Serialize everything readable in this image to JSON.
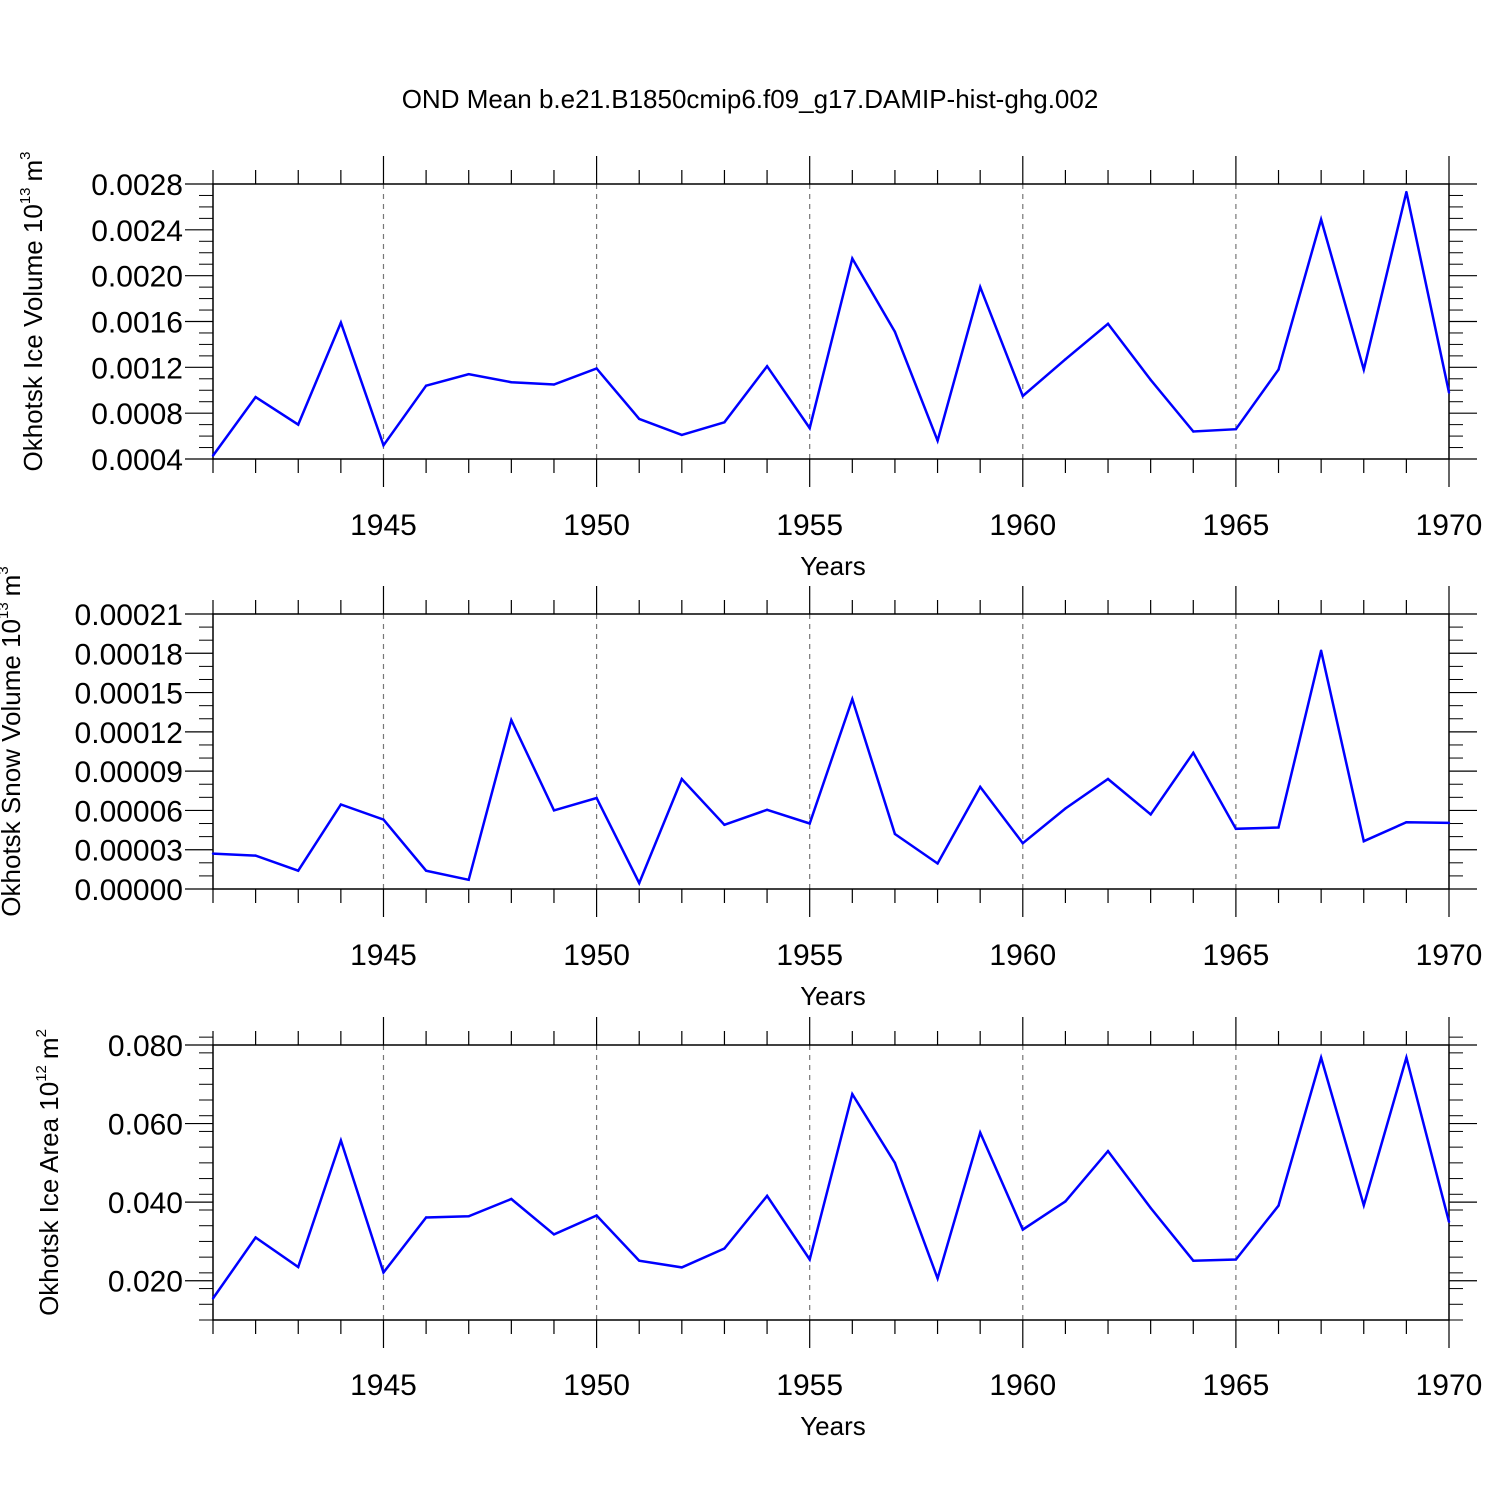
{
  "figure": {
    "title": "OND Mean b.e21.B1850cmip6.f09_g17.DAMIP-hist-ghg.002",
    "line_color": "#0000ff"
  },
  "chart_data": [
    {
      "type": "line",
      "name": "ice-volume",
      "ylabel_text": "Okhotsk Ice Volume 10",
      "ylabel_exp": "13",
      "ylabel_unit": "m",
      "ylabel_unit_exp": "3",
      "xlabel": "Years",
      "xlim": [
        1941,
        1970
      ],
      "ylim": [
        0.0004,
        0.0028
      ],
      "x_ticks": [
        1945,
        1950,
        1955,
        1960,
        1965,
        1970
      ],
      "y_ticks": [
        0.0004,
        0.0008,
        0.0012,
        0.0016,
        0.002,
        0.0024,
        0.0028
      ],
      "y_tick_labels": [
        "0.0004",
        "0.0008",
        "0.0012",
        "0.0016",
        "0.0020",
        "0.0024",
        "0.0028"
      ],
      "y_minor_step": 0.0001,
      "grid": "x-dashed",
      "series": [
        {
          "name": "Okhotsk Ice Volume",
          "x": [
            1941,
            1942,
            1943,
            1944,
            1945,
            1946,
            1947,
            1948,
            1949,
            1950,
            1951,
            1952,
            1953,
            1954,
            1955,
            1956,
            1957,
            1958,
            1959,
            1960,
            1961,
            1962,
            1963,
            1964,
            1965,
            1966,
            1967,
            1968,
            1969,
            1970
          ],
          "values": [
            0.00043,
            0.00094,
            0.0007,
            0.00159,
            0.00052,
            0.00104,
            0.00114,
            0.00107,
            0.00105,
            0.00119,
            0.00075,
            0.00061,
            0.00072,
            0.00121,
            0.00067,
            0.00215,
            0.00151,
            0.00056,
            0.0019,
            0.00095,
            0.00127,
            0.00158,
            0.00109,
            0.00064,
            0.00066,
            0.00118,
            0.00249,
            0.00118,
            0.00273,
            0.00098
          ]
        }
      ]
    },
    {
      "type": "line",
      "name": "snow-volume",
      "ylabel_text": "Okhotsk Snow Volume 10",
      "ylabel_exp": "13",
      "ylabel_unit": "m",
      "ylabel_unit_exp": "3",
      "xlabel": "Years",
      "xlim": [
        1941,
        1970
      ],
      "ylim": [
        0.0,
        0.00021
      ],
      "x_ticks": [
        1945,
        1950,
        1955,
        1960,
        1965,
        1970
      ],
      "y_ticks": [
        0.0,
        3e-05,
        6e-05,
        9e-05,
        0.00012,
        0.00015,
        0.00018,
        0.00021
      ],
      "y_tick_labels": [
        "0.00000",
        "0.00003",
        "0.00006",
        "0.00009",
        "0.00012",
        "0.00015",
        "0.00018",
        "0.00021"
      ],
      "y_minor_step": 1e-05,
      "grid": "x-dashed",
      "series": [
        {
          "name": "Okhotsk Snow Volume",
          "x": [
            1941,
            1942,
            1943,
            1944,
            1945,
            1946,
            1947,
            1948,
            1949,
            1950,
            1951,
            1952,
            1953,
            1954,
            1955,
            1956,
            1957,
            1958,
            1959,
            1960,
            1961,
            1962,
            1963,
            1964,
            1965,
            1966,
            1967,
            1968,
            1969,
            1970
          ],
          "values": [
            2.7e-05,
            2.55e-05,
            1.4e-05,
            6.45e-05,
            5.3e-05,
            1.4e-05,
            7e-06,
            0.000129,
            6e-05,
            6.95e-05,
            4.5e-06,
            8.4e-05,
            4.9e-05,
            6.05e-05,
            5e-05,
            0.000145,
            4.2e-05,
            1.95e-05,
            7.8e-05,
            3.5e-05,
            6.15e-05,
            8.4e-05,
            5.7e-05,
            0.000104,
            4.6e-05,
            4.7e-05,
            0.000182,
            3.65e-05,
            5.1e-05,
            5.05e-05
          ]
        }
      ]
    },
    {
      "type": "line",
      "name": "ice-area",
      "ylabel_text": "Okhotsk Ice Area 10",
      "ylabel_exp": "12",
      "ylabel_unit": "m",
      "ylabel_unit_exp": "2",
      "xlabel": "Years",
      "xlim": [
        1941,
        1970
      ],
      "ylim": [
        0.01,
        0.08
      ],
      "x_ticks": [
        1945,
        1950,
        1955,
        1960,
        1965,
        1970
      ],
      "y_ticks": [
        0.02,
        0.04,
        0.06,
        0.08
      ],
      "y_tick_labels": [
        "0.020",
        "0.040",
        "0.060",
        "0.080"
      ],
      "y_minor_step": 0.004,
      "grid": "x-dashed",
      "series": [
        {
          "name": "Okhotsk Ice Area",
          "x": [
            1941,
            1942,
            1943,
            1944,
            1945,
            1946,
            1947,
            1948,
            1949,
            1950,
            1951,
            1952,
            1953,
            1954,
            1955,
            1956,
            1957,
            1958,
            1959,
            1960,
            1961,
            1962,
            1963,
            1964,
            1965,
            1966,
            1967,
            1968,
            1969,
            1970
          ],
          "values": [
            0.0155,
            0.031,
            0.0235,
            0.0557,
            0.0221,
            0.0361,
            0.0364,
            0.0408,
            0.0318,
            0.0366,
            0.0251,
            0.0234,
            0.0282,
            0.0416,
            0.0254,
            0.0675,
            0.05,
            0.0206,
            0.0577,
            0.033,
            0.0402,
            0.053,
            0.0385,
            0.0251,
            0.0254,
            0.0391,
            0.0768,
            0.0392,
            0.0768,
            0.035
          ]
        }
      ]
    }
  ]
}
